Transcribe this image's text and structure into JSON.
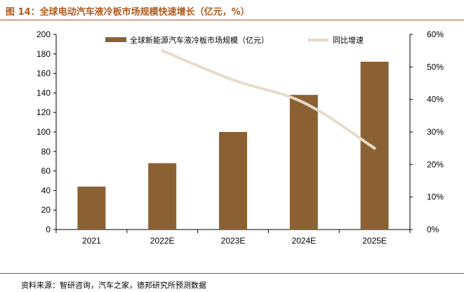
{
  "figure": {
    "title": "图 14：全球电动汽车液冷板市场规模快速增长（亿元，%）",
    "source": "资料来源：智研咨询，汽车之家，德邦研究所预测数据"
  },
  "colors": {
    "bar": "#8b6133",
    "line": "#e6dccb",
    "title": "#b05a1f",
    "rule": "#8b5a2b"
  },
  "chart_data": {
    "type": "bar",
    "categories": [
      "2021",
      "2022E",
      "2023E",
      "2024E",
      "2025E"
    ],
    "series": [
      {
        "name": "全球新能源汽车液冷板市场规模（亿元）",
        "kind": "bar",
        "axis": "left",
        "values": [
          44,
          68,
          100,
          138,
          172
        ]
      },
      {
        "name": "同比增速",
        "kind": "line",
        "axis": "right",
        "values": [
          null,
          0.55,
          0.46,
          0.39,
          0.25
        ]
      }
    ],
    "ylim": [
      0,
      200
    ],
    "yticks": [
      0,
      20,
      40,
      60,
      80,
      100,
      120,
      140,
      160,
      180,
      200
    ],
    "y2lim": [
      0,
      0.6
    ],
    "y2ticks": [
      "0%",
      "10%",
      "20%",
      "30%",
      "40%",
      "50%",
      "60%"
    ],
    "legend_position": "top",
    "grid": false
  }
}
